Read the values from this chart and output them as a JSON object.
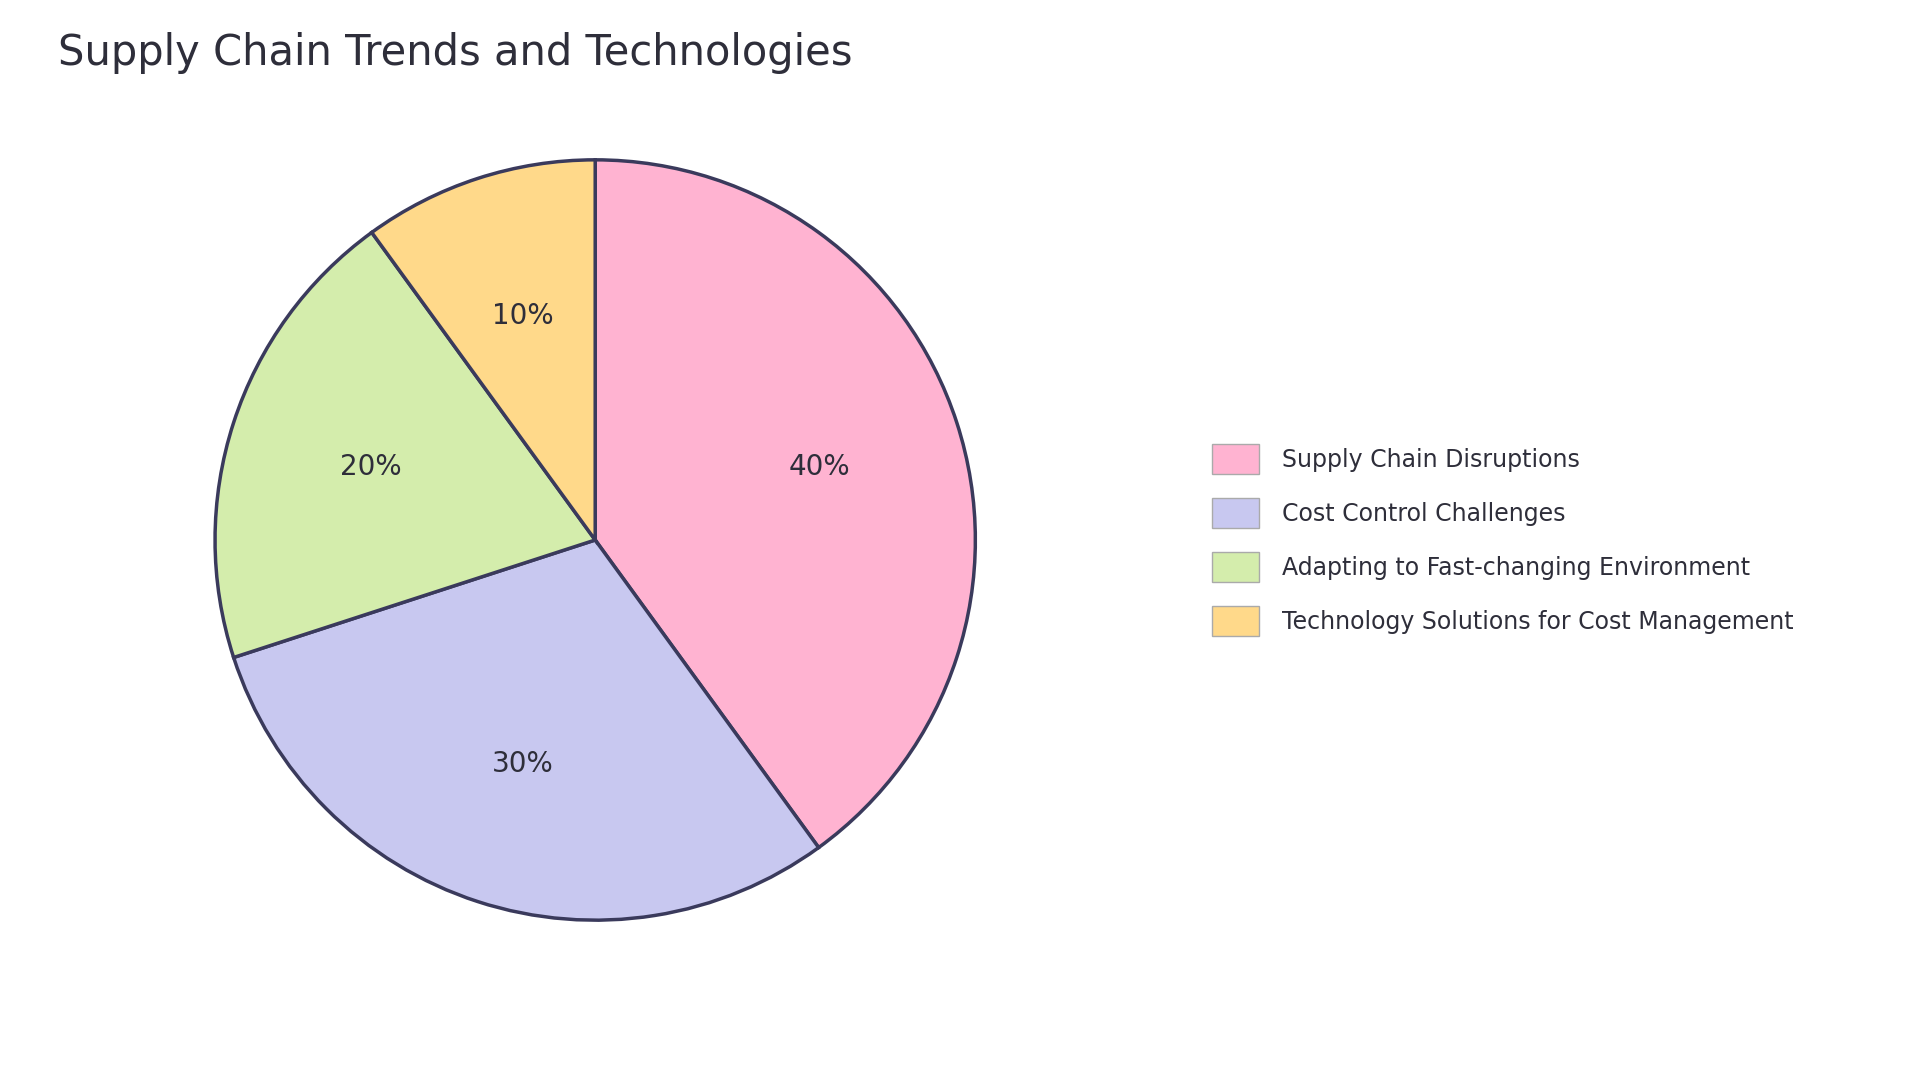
{
  "title": "Supply Chain Trends and Technologies",
  "slices": [
    {
      "label": "Supply Chain Disruptions",
      "value": 40,
      "color": "#FFB3D1"
    },
    {
      "label": "Cost Control Challenges",
      "value": 30,
      "color": "#C8C8F0"
    },
    {
      "label": "Adapting to Fast-changing Environment",
      "value": 20,
      "color": "#D4EDAC"
    },
    {
      "label": "Technology Solutions for Cost Management",
      "value": 10,
      "color": "#FFD98A"
    }
  ],
  "background_color": "#FFFFFF",
  "text_color": "#2E2E3A",
  "edge_color": "#3A3A5C",
  "title_fontsize": 30,
  "label_fontsize": 20,
  "legend_fontsize": 17,
  "startangle": 90,
  "counterclock": false
}
